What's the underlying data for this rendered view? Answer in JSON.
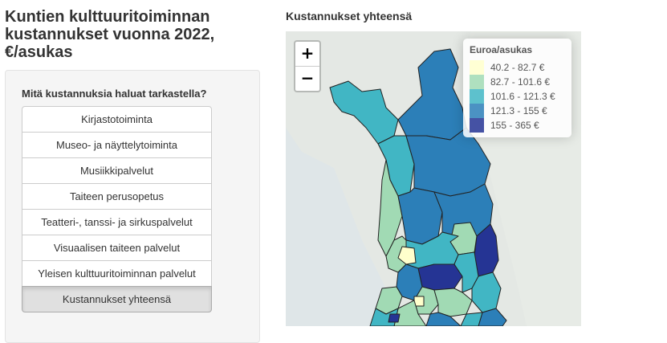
{
  "page": {
    "title": "Kuntien kulttuuritoiminnan kustannukset vuonna 2022, €/asukas"
  },
  "sidebar": {
    "question": "Mitä kustannuksia haluat tarkastella?",
    "options": [
      {
        "label": "Kirjastotoiminta",
        "active": false
      },
      {
        "label": "Museo- ja näyttelytoiminta",
        "active": false
      },
      {
        "label": "Musiikkipalvelut",
        "active": false
      },
      {
        "label": "Taiteen perusopetus",
        "active": false
      },
      {
        "label": "Teatteri-, tanssi- ja sirkuspalvelut",
        "active": false
      },
      {
        "label": "Visuaalisen taiteen palvelut",
        "active": false
      },
      {
        "label": "Yleisen kulttuuritoiminnan palvelut",
        "active": false
      },
      {
        "label": "Kustannukset yhteensä",
        "active": true
      }
    ]
  },
  "map": {
    "title": "Kustannukset yhteensä",
    "zoom_in_label": "+",
    "zoom_out_label": "−",
    "legend": {
      "title": "Euroa/asukas",
      "items": [
        {
          "label": "40.2 - 82.7 €",
          "color": "#ffffcc"
        },
        {
          "label": "82.7 - 101.6 €",
          "color": "#a1dab4"
        },
        {
          "label": "101.6 - 121.3 €",
          "color": "#41b6c4"
        },
        {
          "label": "121.3 - 155 €",
          "color": "#2c7fb8"
        },
        {
          "label": "155 - 365 €",
          "color": "#253494"
        }
      ]
    }
  }
}
